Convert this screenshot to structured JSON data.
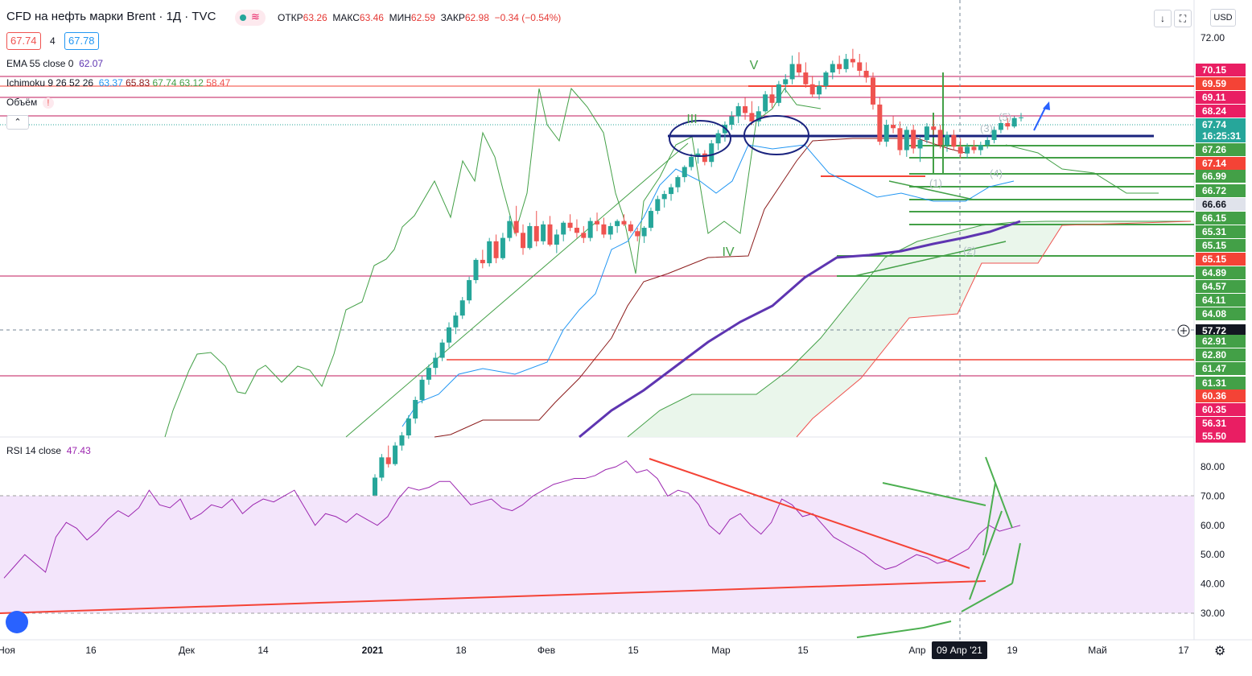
{
  "header": {
    "title": "CFD на нефть марки Brent · 1Д · TVC",
    "open_label": "ОТКР",
    "open": "63.26",
    "high_label": "МАКС",
    "high": "63.46",
    "low_label": "МИН",
    "low": "62.59",
    "close_label": "ЗАКР",
    "close": "62.98",
    "change": "−0.34 (−0.54%)",
    "bid": "67.74",
    "spread": "4",
    "ask": "67.78",
    "wave_icon": "≋",
    "currency": "USD"
  },
  "indicators": {
    "ema_name": "EMA 55 close 0",
    "ema_value": "62.07",
    "ichimoku_name": "Ichimoku 9 26 52 26",
    "ichimoku_values": [
      "63.37",
      "65.83",
      "67.74",
      "63.12",
      "58.47"
    ],
    "volume_name": "Объём",
    "rsi_name": "RSI 14 close",
    "rsi_value": "47.43"
  },
  "toolbar": {
    "down_icon": "↓",
    "expand_icon": "⛶",
    "collapse_icon": "⌃"
  },
  "crosshair": {
    "price": "57.72",
    "date": "09 Апр '21"
  },
  "elliott_labels": [
    "III",
    "IV",
    "V",
    "(1)",
    "(2)",
    "(3)",
    "(4)",
    "(5)"
  ],
  "colors": {
    "up": "#26a69a",
    "down": "#ef5350",
    "ema": "#5e35b1",
    "tenkan": "#2196f3",
    "kijun": "#8b1a1a",
    "lagging": "#43a047",
    "cloud": "#e8f5e9",
    "rsi": "#9c27b0",
    "rsi_band": "#f3e5fb",
    "hline": "#c2185b"
  },
  "chart_data": {
    "type": "candlestick",
    "price_scale": {
      "min": 55.5,
      "max": 72.5,
      "ticks": [
        "72.00"
      ]
    },
    "price_labels": [
      {
        "v": "70.15",
        "c": "#e91e63"
      },
      {
        "v": "69.59",
        "c": "#f44336"
      },
      {
        "v": "69.11",
        "c": "#e91e63"
      },
      {
        "v": "68.24",
        "c": "#e91e63"
      },
      {
        "v": "67.74",
        "c": "#26a69a"
      },
      {
        "v": "16:25:31",
        "c": "#26a69a"
      },
      {
        "v": "67.26",
        "c": "#43a047"
      },
      {
        "v": "67.14",
        "c": "#f44336"
      },
      {
        "v": "66.99",
        "c": "#43a047"
      },
      {
        "v": "66.72",
        "c": "#43a047"
      },
      {
        "v": "66.66",
        "c": "#e0e3eb"
      },
      {
        "v": "66.15",
        "c": "#43a047"
      },
      {
        "v": "65.31",
        "c": "#43a047"
      },
      {
        "v": "65.15",
        "c": "#43a047"
      },
      {
        "v": "65.15",
        "c": "#f44336"
      },
      {
        "v": "64.89",
        "c": "#43a047"
      },
      {
        "v": "64.57",
        "c": "#43a047"
      },
      {
        "v": "64.11",
        "c": "#43a047"
      },
      {
        "v": "64.08",
        "c": "#43a047"
      },
      {
        "v": "57.72",
        "c": "#131722"
      },
      {
        "v": "62.91",
        "c": "#43a047"
      },
      {
        "v": "62.80",
        "c": "#43a047"
      },
      {
        "v": "61.47",
        "c": "#43a047"
      },
      {
        "v": "61.31",
        "c": "#43a047"
      },
      {
        "v": "60.36",
        "c": "#f44336"
      },
      {
        "v": "60.35",
        "c": "#e91e63"
      },
      {
        "v": "56.31",
        "c": "#e91e63"
      },
      {
        "v": "55.50",
        "c": "#e91e63"
      }
    ],
    "rsi_scale": {
      "ticks": [
        "80.00",
        "70.00",
        "60.00",
        "50.00",
        "40.00",
        "30.00"
      ],
      "band": [
        30,
        70
      ]
    },
    "x_labels": [
      "Ноя",
      "16",
      "Дек",
      "14",
      "2021",
      "18",
      "Фев",
      "15",
      "Мар",
      "15",
      "Апр",
      "19",
      "Май",
      "17"
    ],
    "candles": [
      [
        45.1,
        46.6,
        45.0,
        46.4
      ],
      [
        46.4,
        47.8,
        46.2,
        47.6
      ],
      [
        47.6,
        48.3,
        47.0,
        47.2
      ],
      [
        47.2,
        48.5,
        47.1,
        48.3
      ],
      [
        48.3,
        49.1,
        48.0,
        48.9
      ],
      [
        48.9,
        50.1,
        48.7,
        49.9
      ],
      [
        49.9,
        51.2,
        49.6,
        51.0
      ],
      [
        51.0,
        52.4,
        50.8,
        52.2
      ],
      [
        52.2,
        53.1,
        51.9,
        52.9
      ],
      [
        52.9,
        53.8,
        52.5,
        53.5
      ],
      [
        53.5,
        54.6,
        53.3,
        54.4
      ],
      [
        54.4,
        55.6,
        54.1,
        55.3
      ],
      [
        55.3,
        56.2,
        54.9,
        56.0
      ],
      [
        56.0,
        57.1,
        55.8,
        56.9
      ],
      [
        56.9,
        58.3,
        56.7,
        58.1
      ],
      [
        58.1,
        59.4,
        57.9,
        59.3
      ],
      [
        59.3,
        59.9,
        58.8,
        59.1
      ],
      [
        59.1,
        60.6,
        58.9,
        60.4
      ],
      [
        60.4,
        60.8,
        59.1,
        59.4
      ],
      [
        59.4,
        60.9,
        59.3,
        60.6
      ],
      [
        60.6,
        61.9,
        60.4,
        61.6
      ],
      [
        61.6,
        62.5,
        60.7,
        60.9
      ],
      [
        60.9,
        61.4,
        59.6,
        60.0
      ],
      [
        60.0,
        61.5,
        59.9,
        61.3
      ],
      [
        61.3,
        62.2,
        60.1,
        60.4
      ],
      [
        60.4,
        61.6,
        60.2,
        61.4
      ],
      [
        61.4,
        61.9,
        60.1,
        60.2
      ],
      [
        60.2,
        61.1,
        59.7,
        60.8
      ],
      [
        60.8,
        61.6,
        60.4,
        61.5
      ],
      [
        61.5,
        62.0,
        61.0,
        61.2
      ],
      [
        61.2,
        61.7,
        60.6,
        60.9
      ],
      [
        60.9,
        61.3,
        60.3,
        60.6
      ],
      [
        60.6,
        61.8,
        60.4,
        61.6
      ],
      [
        61.6,
        62.1,
        61.0,
        61.4
      ],
      [
        61.4,
        61.8,
        60.6,
        60.8
      ],
      [
        60.8,
        61.5,
        60.5,
        61.3
      ],
      [
        61.3,
        61.7,
        60.9,
        61.6
      ],
      [
        61.6,
        62.0,
        61.3,
        61.4
      ],
      [
        61.4,
        61.6,
        60.9,
        61.0
      ],
      [
        61.0,
        61.2,
        60.4,
        60.7
      ],
      [
        60.7,
        61.3,
        60.3,
        61.2
      ],
      [
        61.2,
        62.4,
        61.0,
        62.2
      ],
      [
        62.2,
        63.1,
        62.0,
        62.9
      ],
      [
        62.9,
        63.4,
        62.4,
        63.2
      ],
      [
        63.2,
        63.8,
        62.8,
        63.6
      ],
      [
        63.6,
        64.3,
        63.3,
        64.2
      ],
      [
        64.2,
        64.9,
        63.9,
        64.8
      ],
      [
        64.8,
        65.6,
        64.6,
        65.4
      ],
      [
        65.4,
        65.9,
        65.0,
        65.6
      ],
      [
        65.6,
        65.8,
        64.9,
        65.1
      ],
      [
        65.1,
        66.4,
        64.8,
        66.2
      ],
      [
        66.2,
        67.0,
        65.8,
        66.8
      ],
      [
        66.8,
        67.5,
        66.3,
        67.3
      ],
      [
        67.3,
        68.1,
        67.0,
        67.8
      ],
      [
        67.8,
        68.6,
        67.4,
        68.4
      ],
      [
        68.4,
        68.9,
        67.6,
        68.0
      ],
      [
        68.0,
        68.7,
        67.3,
        67.5
      ],
      [
        67.5,
        68.4,
        67.2,
        68.1
      ],
      [
        68.1,
        69.3,
        68.0,
        69.1
      ],
      [
        69.1,
        69.6,
        68.3,
        68.6
      ],
      [
        68.6,
        69.9,
        68.4,
        69.7
      ],
      [
        69.7,
        70.3,
        69.2,
        70.0
      ],
      [
        70.0,
        71.4,
        69.7,
        70.9
      ],
      [
        70.9,
        71.6,
        70.2,
        70.4
      ],
      [
        70.4,
        71.0,
        69.5,
        69.7
      ],
      [
        69.7,
        70.2,
        68.9,
        69.1
      ],
      [
        69.1,
        69.9,
        68.8,
        69.6
      ],
      [
        69.6,
        70.5,
        69.4,
        70.4
      ],
      [
        70.4,
        71.1,
        70.0,
        70.9
      ],
      [
        70.9,
        71.4,
        70.3,
        70.6
      ],
      [
        70.6,
        71.5,
        70.4,
        71.2
      ],
      [
        71.2,
        71.8,
        70.7,
        71.0
      ],
      [
        71.0,
        71.5,
        70.2,
        70.5
      ],
      [
        70.5,
        71.0,
        69.8,
        70.1
      ],
      [
        70.1,
        70.4,
        68.2,
        68.5
      ],
      [
        68.5,
        68.9,
        66.1,
        66.3
      ],
      [
        66.3,
        67.6,
        66.0,
        67.3
      ],
      [
        67.3,
        67.8,
        66.8,
        67.1
      ],
      [
        67.1,
        67.5,
        65.5,
        65.8
      ],
      [
        65.8,
        67.2,
        65.4,
        67.0
      ],
      [
        67.0,
        67.3,
        65.6,
        65.9
      ],
      [
        65.9,
        66.6,
        65.1,
        66.4
      ],
      [
        66.4,
        67.4,
        66.2,
        67.2
      ],
      [
        67.2,
        67.6,
        66.7,
        67.0
      ],
      [
        67.0,
        67.3,
        65.9,
        66.1
      ],
      [
        66.1,
        66.9,
        65.7,
        66.7
      ],
      [
        66.7,
        67.0,
        65.8,
        66.0
      ],
      [
        66.0,
        66.5,
        65.3,
        65.6
      ],
      [
        65.6,
        66.2,
        65.3,
        66.0
      ],
      [
        66.0,
        66.4,
        65.6,
        65.8
      ],
      [
        65.8,
        66.3,
        65.5,
        66.1
      ],
      [
        66.1,
        66.6,
        65.9,
        66.4
      ],
      [
        66.4,
        67.2,
        66.2,
        67.0
      ],
      [
        67.0,
        67.6,
        66.8,
        67.4
      ],
      [
        67.4,
        67.7,
        67.0,
        67.2
      ],
      [
        67.2,
        67.8,
        67.1,
        67.7
      ],
      [
        67.7,
        68.0,
        67.5,
        67.74
      ]
    ],
    "ema55": [
      46.0,
      47.0,
      48.0,
      49.0,
      50.0,
      51.0,
      52.0,
      53.0,
      54.0,
      55.0,
      56.0,
      57.0,
      58.0,
      59.0,
      60.0,
      61.0,
      61.6,
      62.1,
      62.5,
      62.9,
      63.3,
      63.6,
      63.9,
      64.2,
      64.5,
      64.75,
      64.95,
      65.1,
      65.25,
      65.35,
      65.45,
      65.55,
      65.7,
      65.85,
      66.0,
      66.15
    ],
    "rsi": [
      42,
      46,
      50,
      47,
      44,
      56,
      61,
      59,
      55,
      58,
      62,
      65,
      63,
      66,
      72,
      67,
      66,
      69,
      62,
      64,
      67,
      66,
      69,
      64,
      67,
      69,
      68,
      70,
      72,
      66,
      60,
      64,
      63,
      61,
      64,
      62,
      60,
      63,
      69,
      73,
      72,
      73,
      75,
      75,
      71,
      67,
      68,
      69,
      66,
      65,
      67,
      70,
      72,
      74,
      75,
      76,
      76,
      77,
      79,
      80,
      82,
      78,
      79,
      76,
      70,
      72,
      71,
      67,
      60,
      57,
      62,
      64,
      60,
      57,
      61,
      69,
      67,
      63,
      64,
      60,
      56,
      54,
      52,
      50,
      47,
      45,
      46,
      48,
      50,
      49,
      47,
      48,
      50,
      52,
      57,
      60,
      58,
      59,
      60
    ]
  }
}
